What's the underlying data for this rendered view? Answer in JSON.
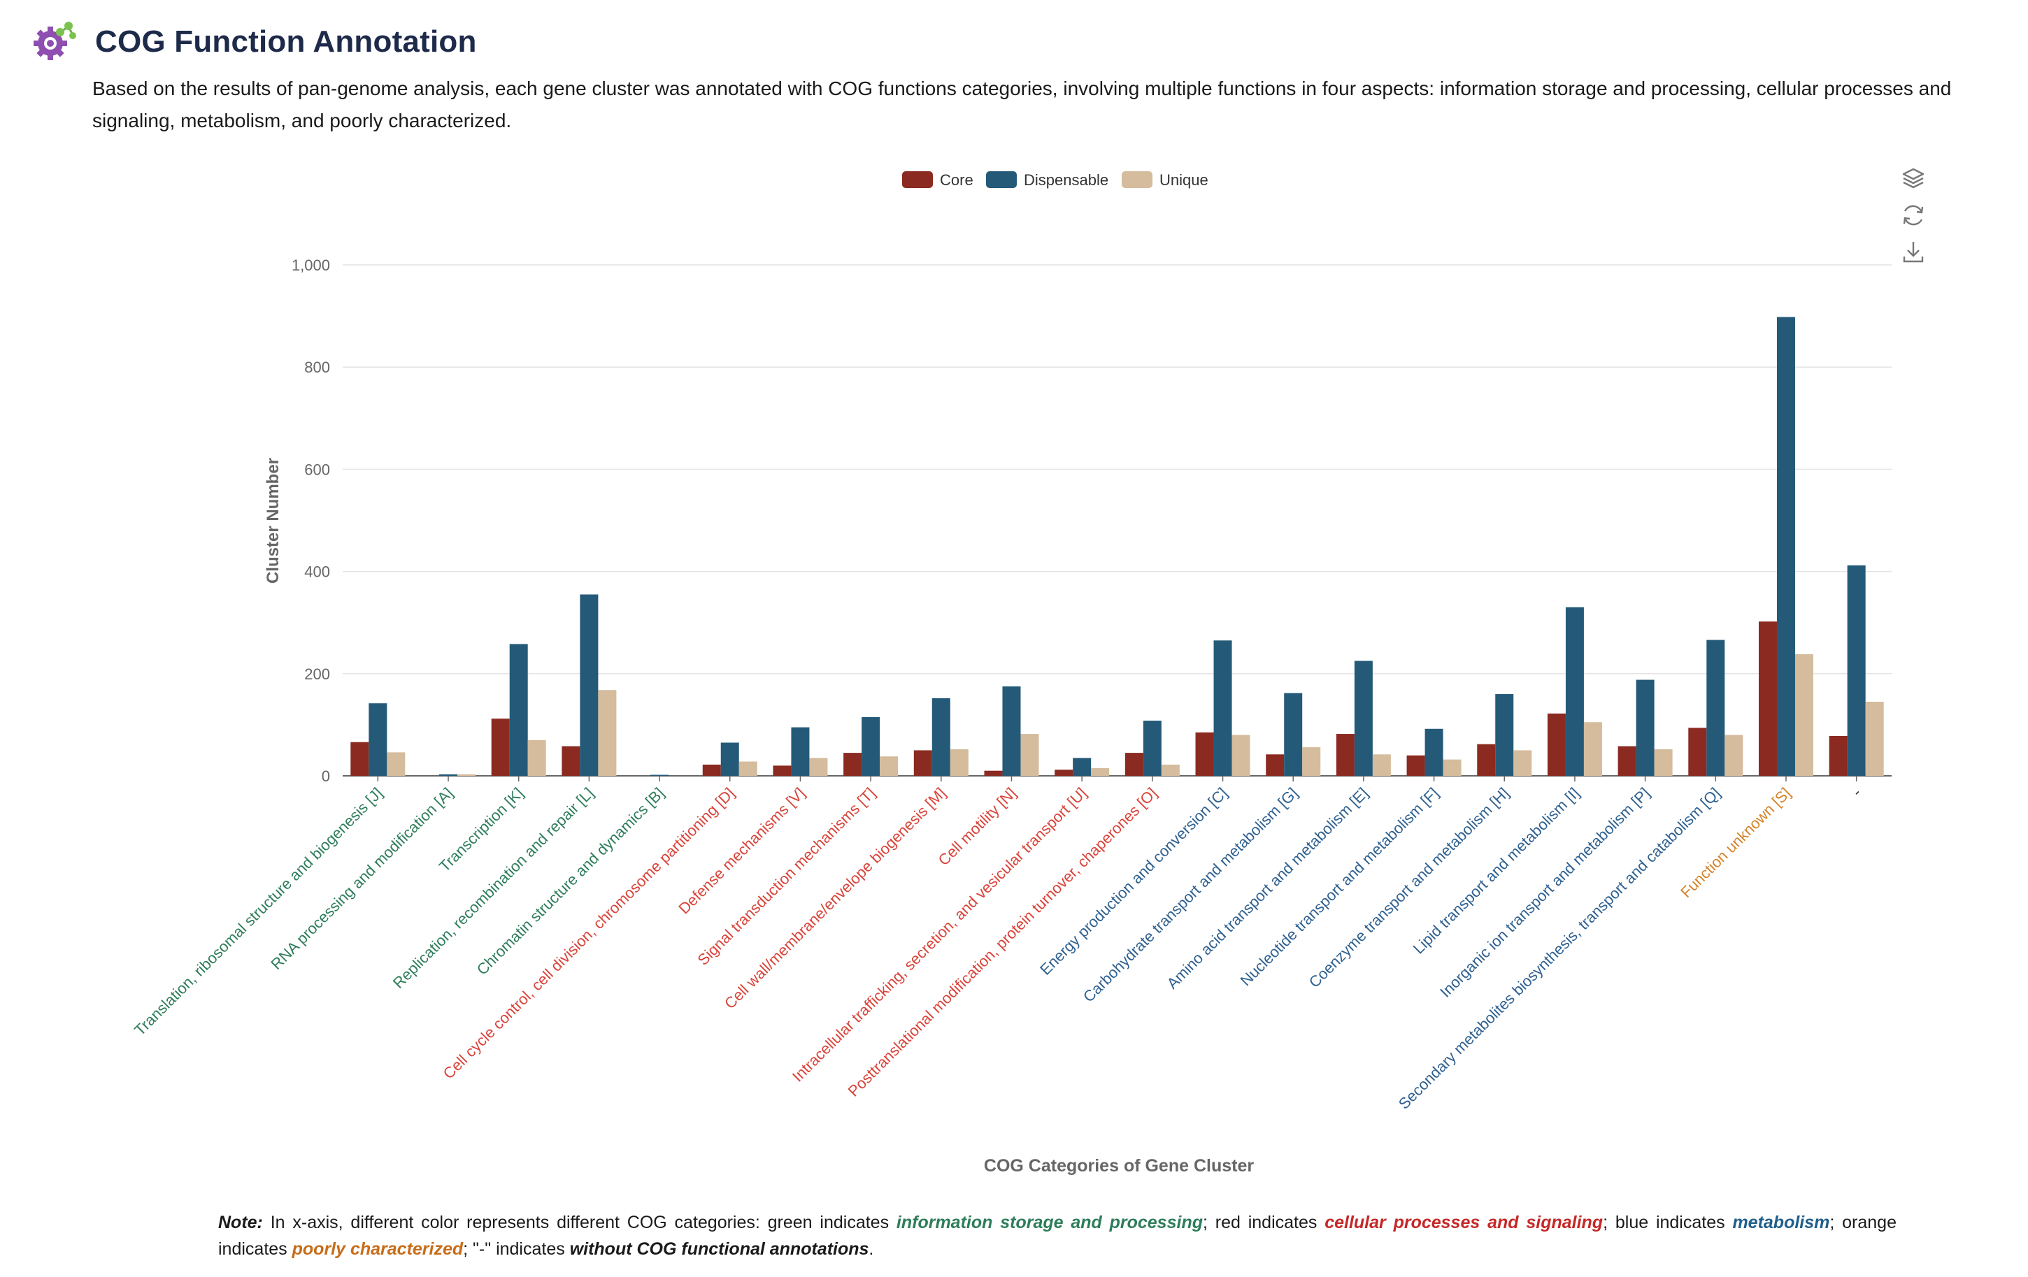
{
  "header": {
    "title": "COG Function Annotation",
    "logo_icon": "gear-molecule-icon"
  },
  "description": "Based on the results of pan-genome analysis, each gene cluster was annotated with COG functions categories, involving multiple functions in four aspects: information storage and processing, cellular processes and signaling, metabolism, and poorly characterized.",
  "toolbox": {
    "icons": [
      "layers-icon",
      "refresh-icon",
      "download-icon"
    ]
  },
  "category_colors": {
    "info": "#2e7d5b",
    "cell": "#d9443a",
    "metab": "#2f6190",
    "poor": "#d4842b",
    "none": "#333333"
  },
  "chart_data": {
    "type": "bar",
    "xlabel": "COG Categories of Gene Cluster",
    "ylabel": "Cluster Number",
    "ylim": [
      0,
      1000
    ],
    "yticks": [
      "0",
      "200",
      "400",
      "600",
      "800",
      "1,000"
    ],
    "grid": true,
    "legend_position": "top-center",
    "categories": [
      "Translation, ribosomal structure and biogenesis [J]",
      "RNA processing and modification [A]",
      "Transcription [K]",
      "Replication, recombination and repair [L]",
      "Chromatin structure and dynamics [B]",
      "Cell cycle control, cell division, chromosome partitioning [D]",
      "Defense mechanisms [V]",
      "Signal transduction mechanisms [T]",
      "Cell wall/membrane/envelope biogenesis [M]",
      "Cell motility [N]",
      "Intracellular trafficking, secretion, and vesicular transport [U]",
      "Posttranslational modification, protein turnover, chaperones [O]",
      "Energy production and conversion [C]",
      "Carbohydrate transport and metabolism [G]",
      "Amino acid transport and metabolism [E]",
      "Nucleotide transport and metabolism [F]",
      "Coenzyme transport and metabolism [H]",
      "Lipid transport and metabolism [I]",
      "Inorganic ion transport and metabolism [P]",
      "Secondary metabolites biosynthesis, transport and catabolism [Q]",
      "Function unknown [S]",
      "-"
    ],
    "category_groups": [
      "info",
      "info",
      "info",
      "info",
      "info",
      "cell",
      "cell",
      "cell",
      "cell",
      "cell",
      "cell",
      "cell",
      "metab",
      "metab",
      "metab",
      "metab",
      "metab",
      "metab",
      "metab",
      "metab",
      "poor",
      "none"
    ],
    "series": [
      {
        "name": "Core",
        "color": "#8b2a20",
        "values": [
          66,
          0,
          112,
          58,
          0,
          22,
          20,
          45,
          50,
          10,
          12,
          45,
          85,
          42,
          82,
          40,
          62,
          122,
          58,
          94,
          302,
          78
        ]
      },
      {
        "name": "Dispensable",
        "color": "#245a78",
        "values": [
          142,
          3,
          258,
          355,
          2,
          65,
          95,
          115,
          152,
          175,
          35,
          108,
          265,
          162,
          225,
          92,
          160,
          330,
          188,
          266,
          898,
          412
        ]
      },
      {
        "name": "Unique",
        "color": "#d4bc9d",
        "values": [
          46,
          3,
          70,
          168,
          0,
          28,
          35,
          38,
          52,
          82,
          15,
          22,
          80,
          56,
          42,
          32,
          50,
          105,
          52,
          80,
          238,
          145
        ]
      }
    ]
  },
  "note": {
    "lead": "Note:",
    "text1": " In x-axis, different color represents different COG categories: green indicates ",
    "green": "information storage and processing",
    "text2": "; red indicates ",
    "red": "cellular processes and signaling",
    "text3": "; blue indicates ",
    "blue": "metabolism",
    "text4": "; orange indicates ",
    "orange": "poorly characterized",
    "text5": "; \"-\" indicates ",
    "none": "without COG functional annotations",
    "text6": "."
  }
}
